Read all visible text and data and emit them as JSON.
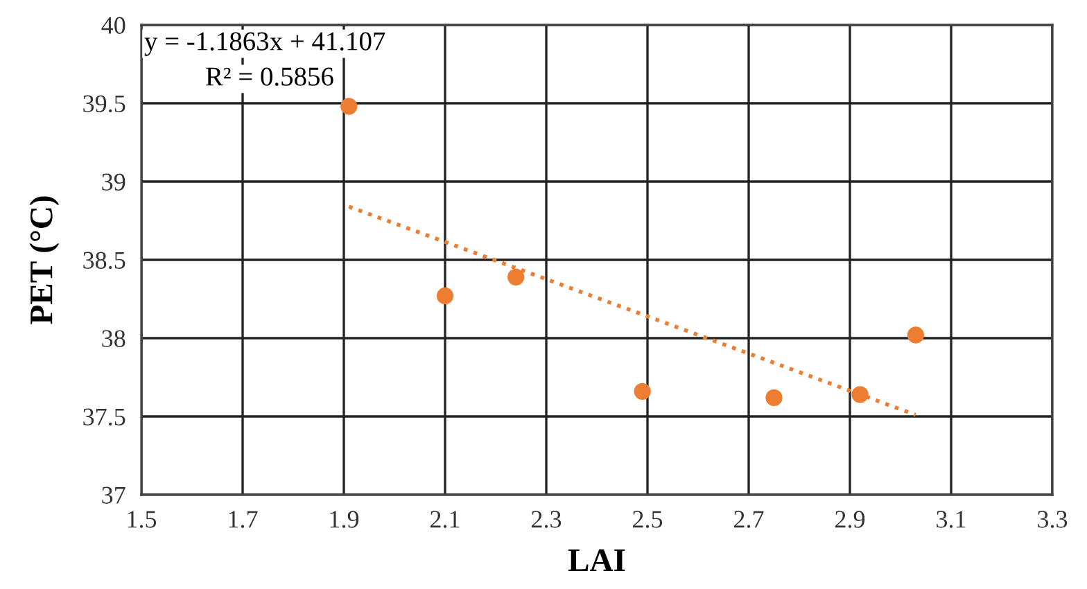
{
  "chart_data": {
    "type": "scatter",
    "xlabel": "LAI",
    "ylabel": "PET (°C)",
    "annotations": [
      "y = -1.1863x + 41.107",
      "R² = 0.5856"
    ],
    "series": [
      {
        "color": "#ed7d31",
        "marker": "circle",
        "x": [
          1.91,
          2.1,
          2.24,
          2.49,
          2.75,
          2.92,
          3.03
        ],
        "values": [
          39.48,
          38.27,
          38.39,
          37.66,
          37.62,
          37.64,
          38.02
        ]
      },
      {
        "type": "line",
        "color": "#ed7d31",
        "line_style": "dotted",
        "x": [
          1.91,
          3.03
        ],
        "values": [
          38.84,
          37.51
        ]
      }
    ],
    "xlim": [
      1.5,
      3.3
    ],
    "xticks": [
      1.5,
      1.7,
      1.9,
      2.1,
      2.3,
      2.5,
      2.7,
      2.9,
      3.1,
      3.3
    ],
    "ylim": [
      37,
      40
    ],
    "yticks": [
      37,
      37.5,
      38,
      38.5,
      39,
      39.5,
      40
    ],
    "grid": true,
    "legend": false
  }
}
